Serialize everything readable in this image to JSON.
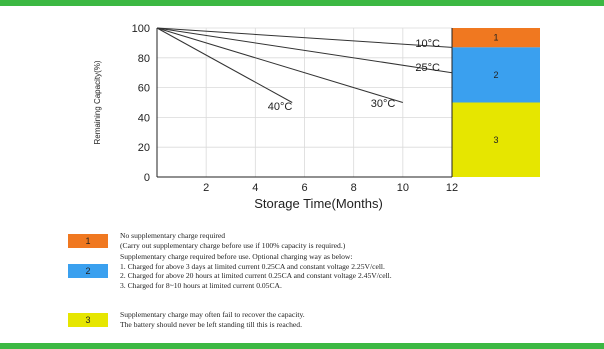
{
  "chart_data": {
    "type": "line",
    "xlabel": "Storage Time(Months)",
    "ylabel": "Remaining Capacity(%)",
    "xlim": [
      0,
      12
    ],
    "ylim": [
      0,
      100
    ],
    "xticks": [
      2,
      4,
      6,
      8,
      10,
      12
    ],
    "yticks": [
      0,
      20,
      40,
      60,
      80,
      100
    ],
    "grid": true,
    "series": [
      {
        "name": "10°C",
        "x": [
          0,
          12
        ],
        "y": [
          100,
          87
        ]
      },
      {
        "name": "25°C",
        "x": [
          0,
          12
        ],
        "y": [
          100,
          70
        ]
      },
      {
        "name": "30°C",
        "x": [
          0,
          10
        ],
        "y": [
          100,
          50
        ]
      },
      {
        "name": "40°C",
        "x": [
          0,
          5.5
        ],
        "y": [
          100,
          50
        ]
      }
    ],
    "zones": [
      {
        "label": "1",
        "from": 87,
        "to": 100,
        "color": "#f07820"
      },
      {
        "label": "2",
        "from": 50,
        "to": 87,
        "color": "#3aa0ef"
      },
      {
        "label": "3",
        "from": 0,
        "to": 50,
        "color": "#e6e600"
      }
    ]
  },
  "legend": [
    {
      "label": "1",
      "color": "#f07820",
      "lines": [
        "No supplementary charge required",
        "(Carry out supplementary charge before use if 100% capacity is required.)"
      ]
    },
    {
      "label": "2",
      "color": "#3aa0ef",
      "lines": [
        "Supplementary charge required before use. Optional charging way as below:",
        "1. Charged for above 3 days at limited current 0.25CA and constant voltage 2.25V/cell.",
        "2. Charged for above 20 hours at limited current 0.25CA and constant voltage 2.45V/cell.",
        "3. Charged for 8~10 hours at limited current 0.05CA."
      ]
    },
    {
      "label": "3",
      "color": "#e6e600",
      "lines": [
        "Supplementary charge may often fail to recover the capacity.",
        "The battery should never be left standing till this is reached."
      ]
    }
  ],
  "colors": {
    "accent_bar": "#3cb843"
  }
}
